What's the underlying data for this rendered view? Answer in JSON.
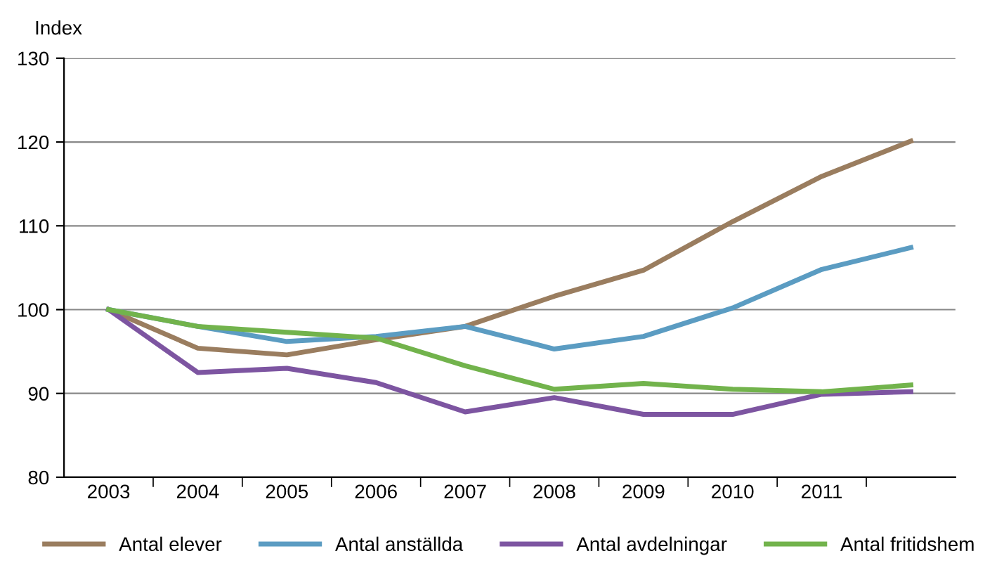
{
  "chart_data": {
    "type": "line",
    "ylabel": "Index",
    "categories": [
      "2003",
      "2004",
      "2005",
      "2006",
      "2007",
      "2008",
      "2009",
      "2010",
      "2011",
      null
    ],
    "ylim": [
      80,
      130
    ],
    "yticks": [
      80,
      90,
      100,
      110,
      120,
      130
    ],
    "grid": "y",
    "legend": "bottom",
    "marker": "none",
    "line_style": "solid",
    "series": [
      {
        "name": "Antal elever",
        "color": "#9a7d5f",
        "values": [
          100,
          95.4,
          94.6,
          96.4,
          98,
          101.6,
          104.7,
          110.5,
          115.9,
          120.1
        ]
      },
      {
        "name": "Antal anställda",
        "color": "#5b9cc2",
        "values": [
          100,
          98,
          96.2,
          96.8,
          98,
          95.3,
          96.8,
          100.2,
          104.8,
          107.4
        ]
      },
      {
        "name": "Antal avdelningar",
        "color": "#7d55a1",
        "values": [
          100,
          92.5,
          93,
          91.3,
          87.8,
          89.5,
          87.5,
          87.5,
          89.9,
          90.2
        ]
      },
      {
        "name": "Antal fritidshem",
        "color": "#72b34c",
        "values": [
          100,
          98,
          97.3,
          96.6,
          93.3,
          90.5,
          91.2,
          90.5,
          90.2,
          91
        ]
      }
    ]
  }
}
